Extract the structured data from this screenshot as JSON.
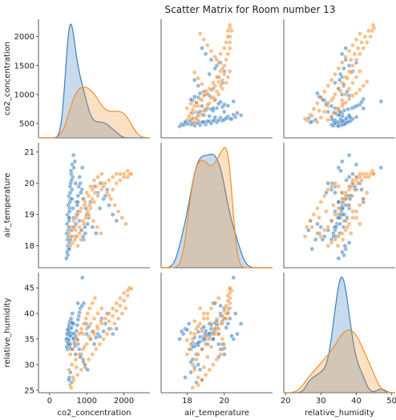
{
  "title": "Scatter Matrix for Room number 13",
  "chart_data": {
    "type": "scatter",
    "title": "Scatter Matrix for Room number 13",
    "variables": [
      "co2_concentration",
      "air_temperature",
      "relative_humidity"
    ],
    "axis_labels": {
      "co2_concentration": "co2_concentration",
      "air_temperature": "air_temperature",
      "relative_humidity": "relative_humidity"
    },
    "ranges": {
      "co2_concentration": [
        250,
        2300
      ],
      "air_temperature": [
        17.3,
        21.3
      ],
      "relative_humidity": [
        24.5,
        48
      ]
    },
    "ticks": {
      "co2_concentration_x": [
        0,
        1000,
        2000
      ],
      "co2_concentration_y": [
        500,
        1000,
        1500,
        2000
      ],
      "air_temperature_x": [
        18,
        20
      ],
      "air_temperature_y": [
        18,
        19,
        20,
        21
      ],
      "relative_humidity_x": [
        20,
        30,
        40,
        50
      ],
      "relative_humidity_y": [
        25,
        30,
        35,
        40,
        45
      ]
    },
    "x_ranges": {
      "co2_concentration": [
        -300,
        2700
      ],
      "air_temperature": [
        16.6,
        22.6
      ],
      "relative_humidity": [
        19.5,
        51
      ]
    },
    "series_colors": [
      "#3a7fbd",
      "#f28e2b"
    ],
    "series": [
      {
        "color": "#3a7fbd",
        "points": [
          [
            480,
            18.2,
            33
          ],
          [
            500,
            18.5,
            34
          ],
          [
            520,
            18.9,
            35.5
          ],
          [
            540,
            19.2,
            36
          ],
          [
            560,
            19.5,
            37
          ],
          [
            490,
            17.7,
            36.5
          ],
          [
            510,
            17.9,
            37
          ],
          [
            530,
            18.1,
            38
          ],
          [
            600,
            19.8,
            33
          ],
          [
            620,
            20.2,
            38
          ],
          [
            650,
            20.5,
            35
          ],
          [
            700,
            20.0,
            32
          ],
          [
            460,
            18.4,
            33.5
          ],
          [
            470,
            18.7,
            34.5
          ],
          [
            480,
            19.0,
            35
          ],
          [
            500,
            19.3,
            36
          ],
          [
            520,
            19.6,
            37.5
          ],
          [
            550,
            19.9,
            38.5
          ],
          [
            580,
            20.3,
            39
          ],
          [
            610,
            20.6,
            40
          ],
          [
            640,
            20.9,
            38
          ],
          [
            680,
            20.7,
            36
          ],
          [
            720,
            19.4,
            35
          ],
          [
            760,
            19.1,
            34
          ],
          [
            800,
            18.8,
            33
          ],
          [
            850,
            18.5,
            32
          ],
          [
            900,
            18.3,
            31
          ],
          [
            950,
            18.6,
            30
          ],
          [
            1000,
            19.0,
            36
          ],
          [
            1100,
            19.4,
            35
          ],
          [
            1200,
            19.9,
            34
          ],
          [
            1300,
            19.7,
            36
          ],
          [
            1400,
            20.0,
            39
          ],
          [
            1500,
            19.6,
            38
          ],
          [
            1600,
            19.3,
            37
          ],
          [
            1700,
            19.0,
            36
          ],
          [
            1800,
            18.8,
            37
          ],
          [
            1550,
            19.8,
            40
          ],
          [
            1450,
            19.5,
            36.5
          ],
          [
            1350,
            19.2,
            35.5
          ],
          [
            450,
            17.6,
            35
          ],
          [
            470,
            17.8,
            36
          ],
          [
            490,
            18.0,
            36.8
          ],
          [
            505,
            18.3,
            34.2
          ],
          [
            515,
            18.6,
            33.8
          ],
          [
            525,
            18.9,
            34.8
          ],
          [
            535,
            19.1,
            35.8
          ],
          [
            545,
            19.4,
            36.3
          ],
          [
            555,
            19.7,
            34.0
          ],
          [
            565,
            20.0,
            33.2
          ],
          [
            575,
            20.4,
            35.6
          ],
          [
            590,
            20.1,
            37.2
          ],
          [
            605,
            19.5,
            38.2
          ],
          [
            625,
            19.2,
            36.1
          ],
          [
            645,
            18.9,
            35.1
          ],
          [
            665,
            18.6,
            34.3
          ],
          [
            685,
            18.3,
            33.6
          ],
          [
            705,
            18.7,
            35.4
          ],
          [
            725,
            19.0,
            36.6
          ],
          [
            745,
            19.3,
            37.7
          ],
          [
            765,
            19.6,
            38.8
          ],
          [
            785,
            19.9,
            39.5
          ],
          [
            805,
            20.2,
            40.2
          ],
          [
            825,
            20.0,
            41.0
          ],
          [
            870,
            19.8,
            41.5
          ],
          [
            920,
            19.5,
            42.0
          ],
          [
            980,
            19.2,
            38.0
          ],
          [
            1050,
            18.9,
            37.4
          ],
          [
            1150,
            18.6,
            36.4
          ],
          [
            1250,
            18.4,
            35.3
          ],
          [
            880,
            20.5,
            47
          ],
          [
            760,
            19.4,
            42
          ],
          [
            840,
            19.7,
            31.5
          ],
          [
            910,
            18.2,
            30.5
          ],
          [
            960,
            18.4,
            29.5
          ],
          [
            1020,
            18.7,
            29
          ],
          [
            530,
            17.9,
            27.5
          ],
          [
            560,
            18.2,
            28.5
          ],
          [
            590,
            18.5,
            26.5
          ],
          [
            520,
            18.8,
            27
          ]
        ]
      },
      {
        "color": "#f28e2b",
        "points": [
          [
            520,
            18.4,
            29
          ],
          [
            600,
            18.3,
            30
          ],
          [
            700,
            18.5,
            31
          ],
          [
            800,
            18.6,
            32
          ],
          [
            900,
            18.8,
            33
          ],
          [
            1000,
            19.0,
            34
          ],
          [
            1100,
            19.2,
            35
          ],
          [
            1200,
            19.4,
            36
          ],
          [
            1300,
            19.6,
            37
          ],
          [
            1400,
            19.8,
            38
          ],
          [
            1500,
            20.0,
            39
          ],
          [
            1600,
            20.1,
            40
          ],
          [
            1700,
            20.2,
            41
          ],
          [
            1800,
            20.3,
            42
          ],
          [
            1900,
            20.3,
            43
          ],
          [
            2000,
            20.3,
            44
          ],
          [
            2100,
            20.4,
            44.5
          ],
          [
            2150,
            20.3,
            45
          ],
          [
            550,
            18.6,
            26
          ],
          [
            650,
            18.8,
            27
          ],
          [
            750,
            19.0,
            28
          ],
          [
            850,
            19.2,
            29
          ],
          [
            950,
            19.4,
            30
          ],
          [
            1050,
            19.6,
            31
          ],
          [
            1150,
            19.8,
            32
          ],
          [
            1250,
            19.9,
            33
          ],
          [
            1350,
            20.0,
            34
          ],
          [
            1450,
            19.9,
            35
          ],
          [
            1550,
            19.7,
            36
          ],
          [
            1650,
            19.5,
            37
          ],
          [
            1750,
            19.3,
            38
          ],
          [
            1850,
            19.1,
            39
          ],
          [
            1950,
            18.9,
            40
          ],
          [
            2050,
            18.7,
            41
          ],
          [
            1020,
            19.1,
            40
          ],
          [
            1080,
            19.3,
            41
          ],
          [
            1150,
            19.5,
            42
          ],
          [
            1220,
            19.7,
            43
          ],
          [
            980,
            18.9,
            39
          ],
          [
            920,
            18.7,
            38
          ],
          [
            860,
            18.5,
            37
          ],
          [
            800,
            18.4,
            36
          ],
          [
            740,
            18.3,
            35
          ],
          [
            680,
            18.2,
            34
          ],
          [
            620,
            18.1,
            33
          ],
          [
            560,
            18.0,
            32
          ],
          [
            900,
            19.5,
            36
          ],
          [
            1000,
            19.7,
            37
          ],
          [
            1100,
            19.9,
            38
          ],
          [
            1200,
            20.1,
            39
          ],
          [
            1300,
            20.2,
            40
          ],
          [
            1400,
            20.3,
            41
          ],
          [
            1600,
            19.6,
            38.5
          ],
          [
            1700,
            19.8,
            39.5
          ],
          [
            1800,
            20.0,
            40.5
          ],
          [
            1900,
            20.1,
            41.5
          ],
          [
            2000,
            20.2,
            42.5
          ],
          [
            2100,
            20.2,
            43.5
          ],
          [
            2200,
            20.3,
            44.8
          ],
          [
            580,
            18.3,
            25.5
          ],
          [
            630,
            18.6,
            27.5
          ],
          [
            720,
            18.9,
            29.5
          ],
          [
            820,
            19.1,
            31.5
          ],
          [
            940,
            19.3,
            33.5
          ],
          [
            1060,
            19.0,
            35.5
          ],
          [
            1180,
            18.8,
            36.5
          ],
          [
            1280,
            18.6,
            37.5
          ],
          [
            1380,
            18.4,
            38.5
          ],
          [
            840,
            18.2,
            36.2
          ],
          [
            760,
            18.0,
            34.8
          ]
        ]
      }
    ],
    "legend": false
  }
}
